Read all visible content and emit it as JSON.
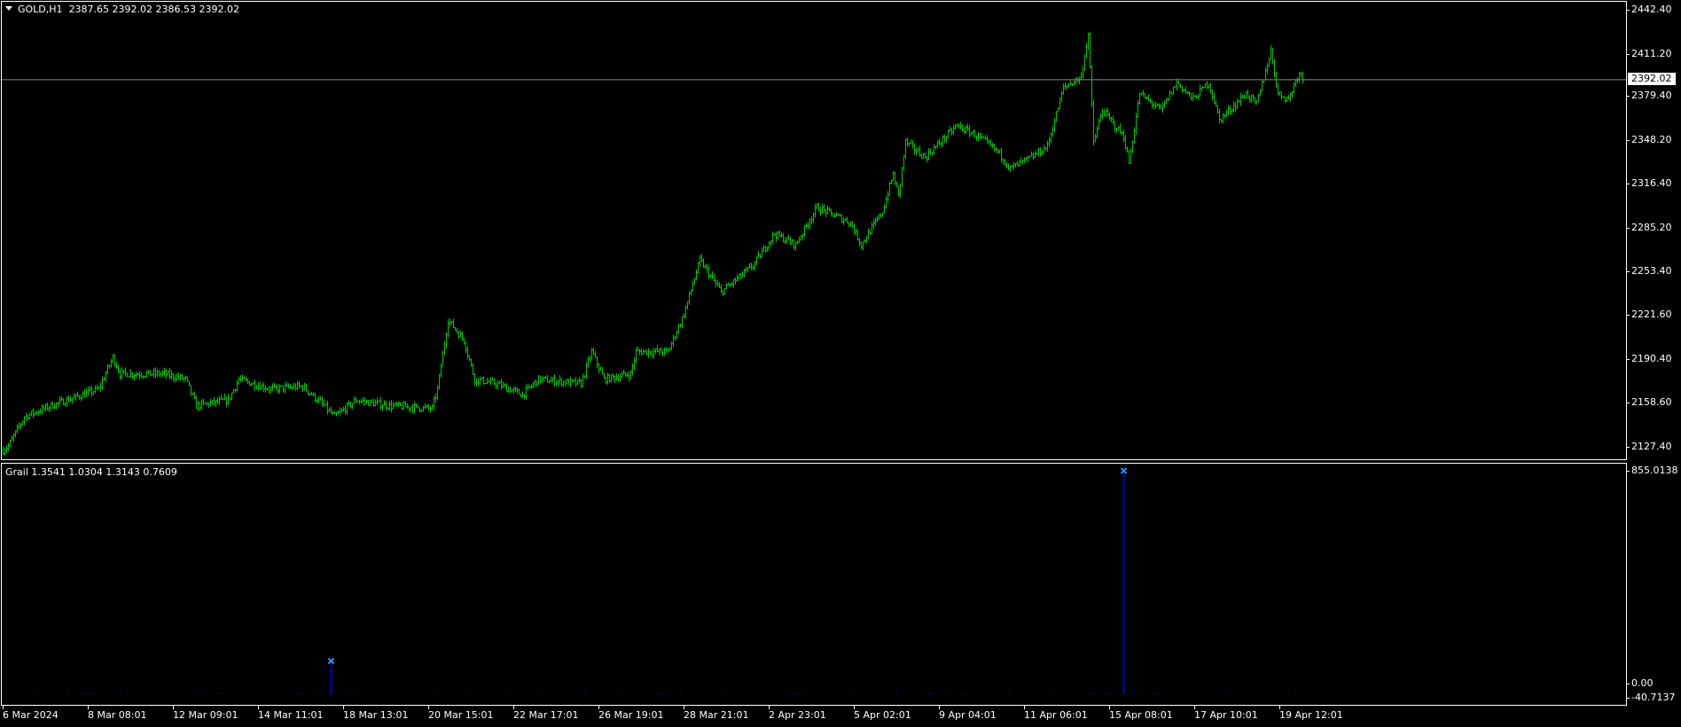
{
  "header": {
    "symbol": "GOLD,H1",
    "ohlc": "2387.65 2392.02 2386.53 2392.02"
  },
  "indicator": {
    "title": "Grail 1.3541 1.0304 1.3143 0.7609",
    "axis_labels": [
      "855.0138",
      "0.00",
      "-40.7137"
    ]
  },
  "price_axis": [
    "2442.40",
    "2411.20",
    "2379.40",
    "2348.20",
    "2316.40",
    "2285.20",
    "2253.40",
    "2221.60",
    "2190.40",
    "2158.60",
    "2127.40"
  ],
  "current_price": "2392.02",
  "time_axis": [
    "6 Mar 2024",
    "8 Mar 08:01",
    "12 Mar 09:01",
    "14 Mar 11:01",
    "18 Mar 13:01",
    "20 Mar 15:01",
    "22 Mar 17:01",
    "26 Mar 19:01",
    "28 Mar 21:01",
    "2 Apr 23:01",
    "5 Apr 02:01",
    "9 Apr 04:01",
    "11 Apr 06:01",
    "15 Apr 08:01",
    "17 Apr 10:01",
    "19 Apr 12:01"
  ],
  "colors": {
    "bars": "#00c800",
    "histogram": "#0000c8",
    "marker": "#2a8cff",
    "grid_line": "#8c8c8c"
  },
  "chart_data": {
    "type": "ohlc-bars",
    "ylim": [
      2127.4,
      2442.4
    ],
    "price_path": [
      [
        0,
        2125
      ],
      [
        3,
        2128
      ],
      [
        12,
        2149
      ],
      [
        27,
        2157
      ],
      [
        54,
        2169
      ],
      [
        62,
        2192
      ],
      [
        66,
        2180
      ],
      [
        91,
        2180
      ],
      [
        103,
        2176
      ],
      [
        109,
        2157
      ],
      [
        127,
        2161
      ],
      [
        133,
        2176
      ],
      [
        151,
        2169
      ],
      [
        169,
        2171
      ],
      [
        181,
        2157
      ],
      [
        187,
        2149
      ],
      [
        199,
        2161
      ],
      [
        218,
        2157
      ],
      [
        242,
        2155
      ],
      [
        245,
        2169
      ],
      [
        251,
        2219
      ],
      [
        260,
        2204
      ],
      [
        266,
        2176
      ],
      [
        278,
        2173
      ],
      [
        293,
        2165
      ],
      [
        302,
        2176
      ],
      [
        326,
        2173
      ],
      [
        332,
        2196
      ],
      [
        339,
        2176
      ],
      [
        354,
        2180
      ],
      [
        357,
        2196
      ],
      [
        375,
        2196
      ],
      [
        384,
        2223
      ],
      [
        393,
        2262
      ],
      [
        405,
        2239
      ],
      [
        423,
        2258
      ],
      [
        435,
        2281
      ],
      [
        447,
        2273
      ],
      [
        459,
        2300
      ],
      [
        478,
        2289
      ],
      [
        484,
        2273
      ],
      [
        496,
        2297
      ],
      [
        502,
        2324
      ],
      [
        505,
        2308
      ],
      [
        509,
        2347
      ],
      [
        520,
        2336
      ],
      [
        538,
        2359
      ],
      [
        550,
        2351
      ],
      [
        562,
        2339
      ],
      [
        568,
        2328
      ],
      [
        580,
        2336
      ],
      [
        589,
        2344
      ],
      [
        598,
        2386
      ],
      [
        608,
        2394
      ],
      [
        612,
        2425
      ],
      [
        615,
        2347
      ],
      [
        620,
        2370
      ],
      [
        632,
        2351
      ],
      [
        635,
        2332
      ],
      [
        641,
        2382
      ],
      [
        653,
        2370
      ],
      [
        662,
        2390
      ],
      [
        671,
        2378
      ],
      [
        680,
        2390
      ],
      [
        686,
        2363
      ],
      [
        701,
        2382
      ],
      [
        707,
        2374
      ],
      [
        715,
        2413
      ],
      [
        719,
        2382
      ],
      [
        725,
        2378
      ],
      [
        731,
        2398
      ],
      [
        733,
        2392
      ]
    ],
    "indicator": {
      "type": "histogram",
      "ylim": [
        -40.7137,
        855.0138
      ],
      "spikes": [
        {
          "bar": 185,
          "value": 115
        },
        {
          "bar": 632,
          "value": 855.0138
        }
      ]
    }
  }
}
